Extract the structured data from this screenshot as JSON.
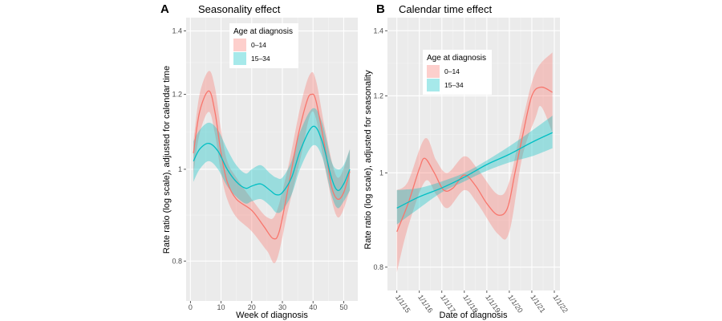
{
  "chart_data": [
    {
      "panel_tag": "A",
      "type": "line",
      "title": "Seasonality effect",
      "xlabel": "Week of diagnosis",
      "ylabel": "Rate ratio (log scale), adjusted for calendar time",
      "y_scale": "log",
      "xlim": [
        -1.4,
        54.6
      ],
      "ylim": [
        0.726,
        1.446
      ],
      "x_ticks": [
        0,
        10,
        20,
        30,
        40,
        50
      ],
      "x_tick_labels": [
        "0",
        "10",
        "20",
        "30",
        "40",
        "50"
      ],
      "y_ticks": [
        0.8,
        1,
        1.2,
        1.4
      ],
      "y_tick_labels": [
        "0.8",
        "1",
        "1.2",
        "1.4"
      ],
      "grid": true,
      "legend": {
        "title": "Age at diagnosis",
        "position": "top-center"
      },
      "series": [
        {
          "name": "0–14",
          "color": "#F8766D",
          "points": [
            [
              1,
              1.04
            ],
            [
              3,
              1.15
            ],
            [
              6,
              1.21
            ],
            [
              8,
              1.15
            ],
            [
              10,
              1.04
            ],
            [
              12,
              0.97
            ],
            [
              15,
              0.93
            ],
            [
              20,
              0.905
            ],
            [
              24,
              0.87
            ],
            [
              27,
              0.845
            ],
            [
              29,
              0.86
            ],
            [
              32,
              0.96
            ],
            [
              35,
              1.08
            ],
            [
              38,
              1.18
            ],
            [
              39.5,
              1.2
            ],
            [
              41,
              1.18
            ],
            [
              44,
              1.05
            ],
            [
              46,
              0.96
            ],
            [
              48,
              0.93
            ],
            [
              50,
              0.945
            ],
            [
              52,
              0.995
            ]
          ],
          "upper": [
            [
              1,
              1.07
            ],
            [
              3,
              1.2
            ],
            [
              6,
              1.27
            ],
            [
              8,
              1.22
            ],
            [
              10,
              1.1
            ],
            [
              12,
              1.02
            ],
            [
              15,
              0.98
            ],
            [
              20,
              0.93
            ],
            [
              25,
              0.89
            ],
            [
              28,
              0.9
            ],
            [
              32,
              1.01
            ],
            [
              36,
              1.17
            ],
            [
              39,
              1.26
            ],
            [
              41,
              1.24
            ],
            [
              44,
              1.1
            ],
            [
              48,
              0.98
            ],
            [
              52,
              1.05
            ]
          ],
          "lower": [
            [
              1,
              0.99
            ],
            [
              3,
              1.09
            ],
            [
              6,
              1.15
            ],
            [
              8,
              1.09
            ],
            [
              10,
              0.99
            ],
            [
              12,
              0.93
            ],
            [
              15,
              0.89
            ],
            [
              20,
              0.86
            ],
            [
              25,
              0.82
            ],
            [
              28,
              0.8
            ],
            [
              32,
              0.91
            ],
            [
              36,
              1.03
            ],
            [
              39,
              1.14
            ],
            [
              41,
              1.13
            ],
            [
              44,
              1.0
            ],
            [
              48,
              0.89
            ],
            [
              52,
              0.95
            ]
          ]
        },
        {
          "name": "15–34",
          "color": "#00BFC4",
          "points": [
            [
              1,
              1.02
            ],
            [
              3,
              1.05
            ],
            [
              6,
              1.065
            ],
            [
              9,
              1.045
            ],
            [
              12,
              1.0
            ],
            [
              15,
              0.97
            ],
            [
              18,
              0.955
            ],
            [
              20,
              0.96
            ],
            [
              23,
              0.965
            ],
            [
              26,
              0.95
            ],
            [
              28,
              0.94
            ],
            [
              30,
              0.945
            ],
            [
              33,
              0.98
            ],
            [
              36,
              1.05
            ],
            [
              40,
              1.11
            ],
            [
              43,
              1.07
            ],
            [
              46,
              0.98
            ],
            [
              48,
              0.95
            ],
            [
              50,
              0.965
            ],
            [
              52,
              1.0
            ]
          ],
          "upper": [
            [
              1,
              1.07
            ],
            [
              3,
              1.1
            ],
            [
              6,
              1.12
            ],
            [
              9,
              1.1
            ],
            [
              12,
              1.05
            ],
            [
              15,
              1.01
            ],
            [
              18,
              0.99
            ],
            [
              20,
              1.0
            ],
            [
              23,
              1.01
            ],
            [
              26,
              0.99
            ],
            [
              28,
              0.98
            ],
            [
              30,
              0.98
            ],
            [
              33,
              1.02
            ],
            [
              36,
              1.1
            ],
            [
              40,
              1.16
            ],
            [
              43,
              1.12
            ],
            [
              46,
              1.02
            ],
            [
              48,
              1.0
            ],
            [
              50,
              1.01
            ],
            [
              52,
              1.05
            ]
          ],
          "lower": [
            [
              1,
              0.97
            ],
            [
              3,
              1.0
            ],
            [
              6,
              1.02
            ],
            [
              9,
              1.0
            ],
            [
              12,
              0.96
            ],
            [
              15,
              0.935
            ],
            [
              18,
              0.92
            ],
            [
              20,
              0.925
            ],
            [
              23,
              0.93
            ],
            [
              26,
              0.915
            ],
            [
              28,
              0.9
            ],
            [
              30,
              0.905
            ],
            [
              33,
              0.94
            ],
            [
              36,
              1.005
            ],
            [
              40,
              1.06
            ],
            [
              43,
              1.03
            ],
            [
              46,
              0.94
            ],
            [
              48,
              0.91
            ],
            [
              50,
              0.925
            ],
            [
              52,
              0.95
            ]
          ]
        }
      ]
    },
    {
      "panel_tag": "B",
      "type": "line",
      "title": "Calendar time effect",
      "xlabel": "Date of diagnosis",
      "ylabel": "Rate ratio (log scale), adjusted for seasonality",
      "y_scale": "log",
      "xlim": [
        "2014-08",
        "2022-04"
      ],
      "ylim": [
        0.757,
        1.444
      ],
      "x_ticks": [
        "2015-01",
        "2016-01",
        "2017-01",
        "2018-01",
        "2019-01",
        "2020-01",
        "2021-01",
        "2022-01"
      ],
      "x_tick_labels": [
        "1/1/15",
        "1/1/16",
        "1/1/17",
        "1/1/18",
        "1/1/19",
        "1/1/20",
        "1/1/21",
        "1/1/22"
      ],
      "y_ticks": [
        0.8,
        1,
        1.2,
        1.4
      ],
      "y_tick_labels": [
        "0.8",
        "1",
        "1.2",
        "1.4"
      ],
      "grid": true,
      "legend": {
        "title": "Age at diagnosis",
        "position": "top-center"
      },
      "series": [
        {
          "name": "0–14",
          "color": "#F8766D",
          "points": [
            [
              "2015-01",
              0.87
            ],
            [
              "2015-07",
              0.93
            ],
            [
              "2016-01",
              1.01
            ],
            [
              "2016-04",
              1.035
            ],
            [
              "2016-09",
              1.0
            ],
            [
              "2017-02",
              0.96
            ],
            [
              "2017-07",
              0.965
            ],
            [
              "2018-01",
              0.995
            ],
            [
              "2018-07",
              0.97
            ],
            [
              "2019-01",
              0.93
            ],
            [
              "2019-07",
              0.905
            ],
            [
              "2019-12",
              0.92
            ],
            [
              "2020-04",
              1.0
            ],
            [
              "2020-08",
              1.09
            ],
            [
              "2021-01",
              1.2
            ],
            [
              "2021-06",
              1.225
            ],
            [
              "2021-12",
              1.21
            ]
          ],
          "upper": [
            [
              "2015-01",
              0.96
            ],
            [
              "2015-07",
              0.98
            ],
            [
              "2016-04",
              1.085
            ],
            [
              "2016-10",
              1.03
            ],
            [
              "2017-04",
              1.0
            ],
            [
              "2018-01",
              1.04
            ],
            [
              "2018-08",
              1.01
            ],
            [
              "2019-07",
              0.95
            ],
            [
              "2020-01",
              0.98
            ],
            [
              "2020-08",
              1.13
            ],
            [
              "2021-03",
              1.27
            ],
            [
              "2021-12",
              1.33
            ]
          ],
          "lower": [
            [
              "2015-01",
              0.79
            ],
            [
              "2015-07",
              0.88
            ],
            [
              "2016-04",
              0.98
            ],
            [
              "2016-10",
              0.95
            ],
            [
              "2017-04",
              0.92
            ],
            [
              "2018-01",
              0.96
            ],
            [
              "2018-08",
              0.93
            ],
            [
              "2019-07",
              0.865
            ],
            [
              "2020-01",
              0.87
            ],
            [
              "2020-08",
              1.04
            ],
            [
              "2021-03",
              1.14
            ],
            [
              "2021-06",
              1.17
            ],
            [
              "2021-12",
              1.1
            ]
          ]
        },
        {
          "name": "15–34",
          "color": "#00BFC4",
          "points": [
            [
              "2015-01",
              0.92
            ],
            [
              "2016-01",
              0.945
            ],
            [
              "2017-01",
              0.965
            ],
            [
              "2018-01",
              0.99
            ],
            [
              "2019-01",
              1.02
            ],
            [
              "2020-01",
              1.045
            ],
            [
              "2021-01",
              1.075
            ],
            [
              "2021-12",
              1.1
            ]
          ],
          "upper": [
            [
              "2015-01",
              0.96
            ],
            [
              "2016-01",
              0.965
            ],
            [
              "2017-01",
              0.98
            ],
            [
              "2018-01",
              1.0
            ],
            [
              "2019-01",
              1.03
            ],
            [
              "2020-01",
              1.065
            ],
            [
              "2021-01",
              1.105
            ],
            [
              "2021-12",
              1.145
            ]
          ],
          "lower": [
            [
              "2015-01",
              0.885
            ],
            [
              "2016-01",
              0.92
            ],
            [
              "2017-01",
              0.955
            ],
            [
              "2018-01",
              0.98
            ],
            [
              "2019-01",
              1.005
            ],
            [
              "2020-01",
              1.025
            ],
            [
              "2021-01",
              1.04
            ],
            [
              "2021-12",
              1.06
            ]
          ]
        }
      ]
    }
  ]
}
